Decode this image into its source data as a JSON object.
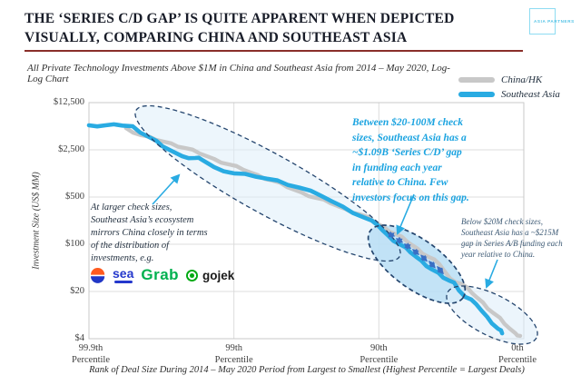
{
  "slide": {
    "title": "THE ‘SERIES C/D GAP’ IS QUITE APPARENT WHEN DEPICTED VISUALLY, COMPARING CHINA AND SOUTHEAST ASIA",
    "subtitle": "All Private Technology Investments Above $1M in China and Southeast Asia from 2014 – May 2020, Log-Log Chart",
    "logo_text": "ASIA PARTNERS",
    "divider_color": "#8a2e2a"
  },
  "legend": {
    "items": [
      {
        "label": "China/HK",
        "color": "#c8c8c8"
      },
      {
        "label": "Southeast Asia",
        "color": "#29abe2"
      }
    ]
  },
  "chart_data": {
    "type": "line",
    "x_scale": "log",
    "y_scale": "log",
    "xlabel": "Rank of  Deal Size During 2014 – May 2020 Period from Largest to Smallest (Highest Percentile = Largest Deals)",
    "ylabel": "Investment Size (US$ MM)",
    "x_axis": {
      "unit": "share of deals ranked from largest, % (0.1% = 99.9th percentile)",
      "range_t": [
        0.1,
        100
      ],
      "tick_sub": "Percentile",
      "ticks": [
        {
          "label": "99.9th",
          "t": 0.1
        },
        {
          "label": "99th",
          "t": 1
        },
        {
          "label": "90th",
          "t": 10
        },
        {
          "label": "0th",
          "t": 100
        }
      ]
    },
    "y_axis": {
      "unit": "US$ MM",
      "range_v": [
        4,
        12500
      ],
      "ticks": [
        {
          "label": "$12,500",
          "v": 12500
        },
        {
          "label": "$2,500",
          "v": 2500
        },
        {
          "label": "$500",
          "v": 500
        },
        {
          "label": "$100",
          "v": 100
        },
        {
          "label": "$20",
          "v": 20
        },
        {
          "label": "$4",
          "v": 4
        }
      ]
    },
    "series": [
      {
        "name": "China/HK",
        "color": "#c8c8c8",
        "points": [
          [
            0.18,
            5260
          ],
          [
            0.23,
            4100
          ],
          [
            0.29,
            3510
          ],
          [
            0.37,
            3110
          ],
          [
            0.46,
            2660
          ],
          [
            0.58,
            2210
          ],
          [
            0.73,
            1835
          ],
          [
            0.92,
            1525
          ],
          [
            1.16,
            1270
          ],
          [
            1.47,
            1050
          ],
          [
            1.85,
            875
          ],
          [
            2.32,
            705
          ],
          [
            2.93,
            585
          ],
          [
            3.69,
            485
          ],
          [
            4.64,
            405
          ],
          [
            5.85,
            334
          ],
          [
            7.37,
            278
          ],
          [
            9.28,
            217
          ],
          [
            11.0,
            175
          ],
          [
            13.1,
            141
          ],
          [
            15.6,
            110
          ],
          [
            18.5,
            86
          ],
          [
            22.0,
            65
          ],
          [
            26.1,
            51
          ],
          [
            31.1,
            31
          ],
          [
            36.9,
            26
          ],
          [
            43.9,
            19
          ],
          [
            52.2,
            13.8
          ],
          [
            62.0,
            9.5
          ],
          [
            73.7,
            6.6
          ],
          [
            87.6,
            4.8
          ],
          [
            94.4,
            4.4
          ]
        ]
      },
      {
        "name": "Southeast Asia",
        "color": "#29abe2",
        "points": [
          [
            0.1,
            5770
          ],
          [
            0.13,
            5760
          ],
          [
            0.17,
            5720
          ],
          [
            0.2,
            5590
          ],
          [
            0.26,
            3860
          ],
          [
            0.32,
            2830
          ],
          [
            0.44,
            2010
          ],
          [
            0.54,
            1890
          ],
          [
            0.6,
            1790
          ],
          [
            0.73,
            1390
          ],
          [
            1.0,
            1120
          ],
          [
            1.42,
            1000
          ],
          [
            2.0,
            880
          ],
          [
            2.83,
            690
          ],
          [
            4.0,
            520
          ],
          [
            5.65,
            360
          ],
          [
            7.99,
            246
          ],
          [
            9.79,
            192
          ],
          [
            11.7,
            132
          ],
          [
            13.9,
            100
          ],
          [
            16.5,
            76
          ],
          [
            19.7,
            57
          ],
          [
            23.4,
            42
          ],
          [
            27.8,
            32
          ],
          [
            33.1,
            27
          ],
          [
            39.4,
            16.6
          ],
          [
            46.9,
            13
          ],
          [
            55.9,
            8.4
          ],
          [
            66.5,
            5.6
          ],
          [
            70.8,
            4.8
          ]
        ]
      }
    ],
    "highlight_regions": [
      {
        "name": "mirror-region",
        "meaning": "large checks: SEA mirrors China"
      },
      {
        "name": "series-cd-gap",
        "meaning": "$20-100M checks: ~$1.09B annual gap"
      },
      {
        "name": "series-ab-gap",
        "meaning": "below $20M checks: ~$215M annual gap"
      }
    ]
  },
  "annotations": {
    "left_note": {
      "text": "At larger check sizes,\nSoutheast Asia’s ecosystem\nmirrors China closely in terms\nof  the distribution of\ninvestments, e.g."
    },
    "cd_note": {
      "text": "Between $20-100M check\nsizes, Southeast Asia has a\n~$1.09B ‘Series C/D’ gap\nin funding each year\nrelative to China. Few\ninvestors focus on this gap.",
      "color": "#1aa3e0"
    },
    "ab_note": {
      "text": "Below $20M check sizes,\nSoutheast Asia has a ~$215M\ngap in Series A/B funding each\nyear relative to China."
    },
    "logos": {
      "sea": "sea",
      "grab": "Grab",
      "gojek": "gojek",
      "sea_color": "#2438cc",
      "grab_color": "#00B14F",
      "gojek_color": "#00AA13"
    }
  }
}
